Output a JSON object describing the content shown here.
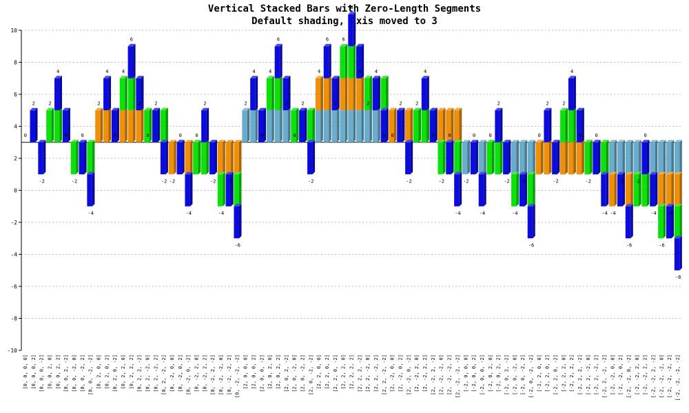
{
  "chart_data": {
    "type": "bar",
    "stacked": true,
    "title": "Vertical Stacked Bars with Zero-Length Segments",
    "subtitle": "Default shading, Axis moved to 3",
    "ylim": [
      -10,
      10
    ],
    "yticks": [
      -10,
      -8,
      -6,
      -4,
      -2,
      0,
      2,
      4,
      6,
      8,
      10
    ],
    "axis_at": 3,
    "grid": true,
    "colors": {
      "s1": "#6aaccc",
      "s2": "#f0900a",
      "s3": "#0ce10c",
      "s4": "#0b0be0",
      "grid": "#b8b8b8"
    },
    "categories": [
      "[0, 0, 0, 0]",
      "[0, 0, 0, 2]",
      "[0, 0, 0, -2]",
      "[0, 0, 2, 0]",
      "[0, 0, 2, 2]",
      "[0, 0, 2, -2]",
      "[0, 0, -2, 0]",
      "[0, 0, -2, 2]",
      "[0, 0, -2, -2]",
      "[0, 2, 0, 0]",
      "[0, 2, 0, 2]",
      "[0, 2, 0, -2]",
      "[0, 2, 2, 0]",
      "[0, 2, 2, 2]",
      "[0, 2, 2, -2]",
      "[0, 2, -2, 0]",
      "[0, 2, -2, 2]",
      "[0, 2, -2, -2]",
      "[0, -2, 0, 0]",
      "[0, -2, 0, 2]",
      "[0, -2, 0, -2]",
      "[0, -2, 2, 0]",
      "[0, -2, 2, 2]",
      "[0, -2, 2, -2]",
      "[0, -2, -2, 0]",
      "[0, -2, -2, 2]",
      "[0, -2, -2, -2]",
      "[2, 0, 0, 0]",
      "[2, 0, 0, 2]",
      "[2, 0, 0, -2]",
      "[2, 0, 2, 0]",
      "[2, 0, 2, 2]",
      "[2, 0, 2, -2]",
      "[2, 0, -2, 0]",
      "[2, 0, -2, 2]",
      "[2, 0, -2, -2]",
      "[2, 2, 0, 0]",
      "[2, 2, 0, 2]",
      "[2, 2, 0, -2]",
      "[2, 2, 2, 0]",
      "[2, 2, 2, 2]",
      "[2, 2, 2, -2]",
      "[2, 2, -2, 0]",
      "[2, 2, -2, 2]",
      "[2, 2, -2, -2]",
      "[2, -2, 0, 0]",
      "[2, -2, 0, 2]",
      "[2, -2, 0, -2]",
      "[2, -2, 2, 0]",
      "[2, -2, 2, 2]",
      "[2, -2, 2, -2]",
      "[2, -2, -2, 0]",
      "[2, -2, -2, 2]",
      "[2, -2, -2, -2]",
      "[-2, 0, 0, 0]",
      "[-2, 0, 0, 2]",
      "[-2, 0, 0, -2]",
      "[-2, 0, 2, 0]",
      "[-2, 0, 2, 2]",
      "[-2, 0, 2, -2]",
      "[-2, 0, -2, 0]",
      "[-2, 0, -2, 2]",
      "[-2, 0, -2, -2]",
      "[-2, 2, 0, 0]",
      "[-2, 2, 0, 2]",
      "[-2, 2, 0, -2]",
      "[-2, 2, 2, 0]",
      "[-2, 2, 2, 2]",
      "[-2, 2, 2, -2]",
      "[-2, 2, -2, 0]",
      "[-2, 2, -2, 2]",
      "[-2, 2, -2, -2]",
      "[-2, -2, 0, 0]",
      "[-2, -2, 0, 2]",
      "[-2, -2, 0, -2]",
      "[-2, -2, 2, 0]",
      "[-2, -2, 2, 2]",
      "[-2, -2, 2, -2]",
      "[-2, -2, -2, 0]",
      "[-2, -2, -2, 2]",
      "[-2, -2, -2, -2]"
    ],
    "series": [
      {
        "values": [
          0,
          0,
          0,
          0,
          0,
          0,
          0,
          0,
          0,
          0,
          0,
          0,
          0,
          0,
          0,
          0,
          0,
          0,
          0,
          0,
          0,
          0,
          0,
          0,
          0,
          0,
          0,
          2,
          2,
          2,
          2,
          2,
          2,
          2,
          2,
          2,
          2,
          2,
          2,
          2,
          2,
          2,
          2,
          2,
          2,
          2,
          2,
          2,
          2,
          2,
          2,
          2,
          2,
          2,
          -2,
          -2,
          -2,
          -2,
          -2,
          -2,
          -2,
          -2,
          -2,
          -2,
          -2,
          -2,
          -2,
          -2,
          -2,
          -2,
          -2,
          -2,
          -2,
          -2,
          -2,
          -2,
          -2,
          -2,
          -2,
          -2,
          -2
        ]
      },
      {
        "values": [
          0,
          0,
          0,
          0,
          0,
          0,
          0,
          0,
          0,
          2,
          2,
          2,
          2,
          2,
          2,
          2,
          2,
          2,
          -2,
          -2,
          -2,
          -2,
          -2,
          -2,
          -2,
          -2,
          -2,
          0,
          0,
          0,
          0,
          0,
          0,
          0,
          0,
          0,
          2,
          2,
          2,
          2,
          2,
          2,
          2,
          2,
          2,
          -2,
          -2,
          -2,
          -2,
          -2,
          -2,
          -2,
          -2,
          -2,
          0,
          0,
          0,
          0,
          0,
          0,
          0,
          0,
          0,
          2,
          2,
          2,
          2,
          2,
          2,
          2,
          2,
          2,
          -2,
          -2,
          -2,
          -2,
          -2,
          -2,
          -2,
          -2,
          -2
        ]
      },
      {
        "values": [
          0,
          0,
          0,
          2,
          2,
          2,
          -2,
          -2,
          -2,
          0,
          0,
          0,
          2,
          2,
          2,
          -2,
          -2,
          -2,
          0,
          0,
          0,
          2,
          2,
          2,
          -2,
          -2,
          -2,
          0,
          0,
          0,
          2,
          2,
          2,
          -2,
          -2,
          -2,
          0,
          0,
          0,
          2,
          2,
          2,
          -2,
          -2,
          -2,
          0,
          0,
          0,
          2,
          2,
          2,
          -2,
          -2,
          -2,
          0,
          0,
          0,
          2,
          2,
          2,
          -2,
          -2,
          -2,
          0,
          0,
          0,
          2,
          2,
          2,
          -2,
          -2,
          -2,
          0,
          0,
          0,
          2,
          2,
          2,
          -2,
          -2,
          -2
        ]
      },
      {
        "values": [
          0,
          2,
          -2,
          0,
          2,
          -2,
          0,
          2,
          -2,
          0,
          2,
          -2,
          0,
          2,
          -2,
          0,
          2,
          -2,
          0,
          2,
          -2,
          0,
          2,
          -2,
          0,
          2,
          -2,
          0,
          2,
          -2,
          0,
          2,
          -2,
          0,
          2,
          -2,
          0,
          2,
          -2,
          0,
          2,
          -2,
          0,
          2,
          -2,
          0,
          2,
          -2,
          0,
          2,
          -2,
          0,
          2,
          -2,
          0,
          2,
          -2,
          0,
          2,
          -2,
          0,
          2,
          -2,
          0,
          2,
          -2,
          0,
          2,
          -2,
          0,
          2,
          -2,
          0,
          2,
          -2,
          0,
          2,
          -2,
          0,
          2,
          -2
        ]
      }
    ]
  }
}
